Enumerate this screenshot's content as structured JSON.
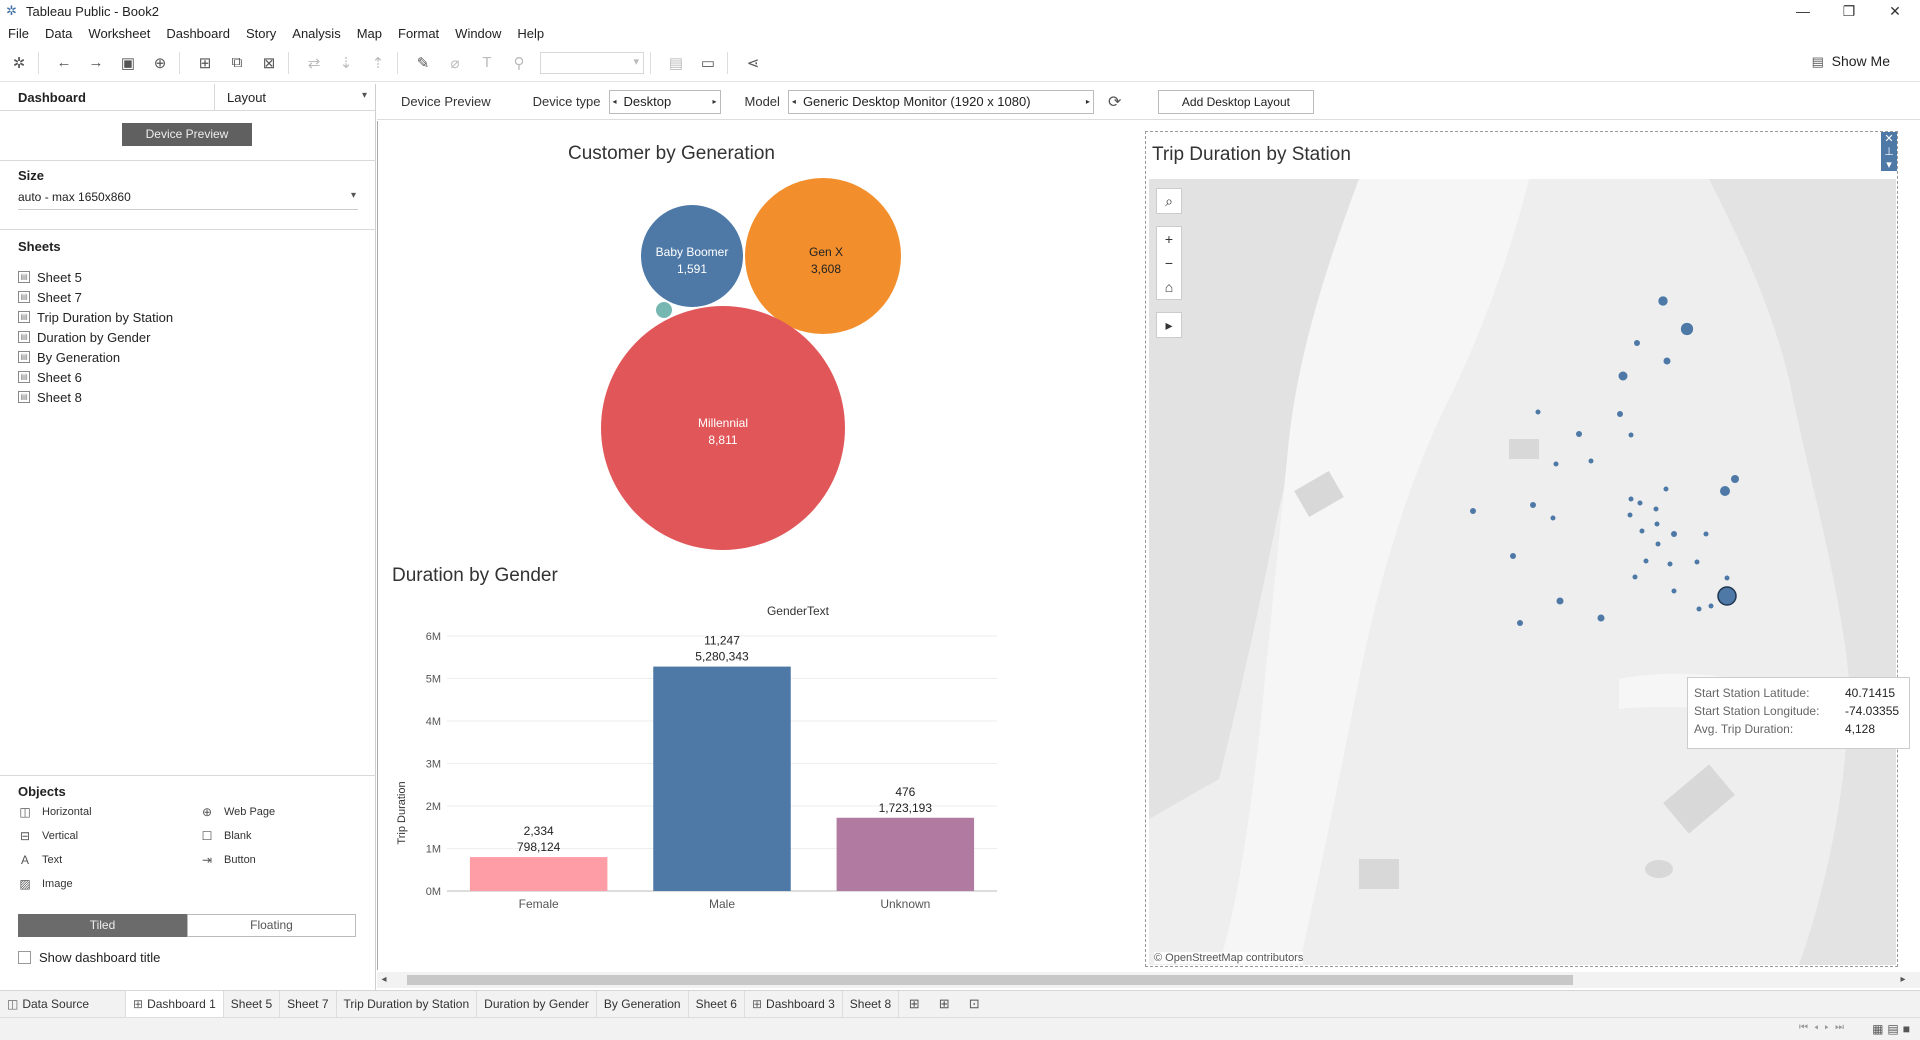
{
  "window": {
    "title": "Tableau Public - Book2",
    "minimize": "—",
    "maximize": "❐",
    "close": "✕"
  },
  "menu": [
    "File",
    "Data",
    "Worksheet",
    "Dashboard",
    "Story",
    "Analysis",
    "Map",
    "Format",
    "Window",
    "Help"
  ],
  "toolbar": {
    "show_me": "Show Me"
  },
  "left_panel": {
    "tab_dashboard": "Dashboard",
    "tab_layout": "Layout",
    "device_preview_button": "Device Preview",
    "size_heading": "Size",
    "size_value": "auto - max 1650x860",
    "sheets_heading": "Sheets",
    "sheets": [
      "Sheet 5",
      "Sheet 7",
      "Trip Duration by Station",
      "Duration by Gender",
      "By Generation",
      "Sheet 6",
      "Sheet 8"
    ],
    "objects_heading": "Objects",
    "objects": [
      {
        "label": "Horizontal",
        "icon": "horizontal-icon"
      },
      {
        "label": "Web Page",
        "icon": "web-page-icon"
      },
      {
        "label": "Vertical",
        "icon": "vertical-icon"
      },
      {
        "label": "Blank",
        "icon": "blank-icon"
      },
      {
        "label": "Text",
        "icon": "text-icon"
      },
      {
        "label": "Button",
        "icon": "button-icon"
      },
      {
        "label": "Image",
        "icon": "image-icon"
      }
    ],
    "tiled": "Tiled",
    "floating": "Floating",
    "show_dashboard_title": "Show dashboard title"
  },
  "device_bar": {
    "device_preview": "Device Preview",
    "device_type_label": "Device type",
    "device_type_value": "Desktop",
    "model_label": "Model",
    "model_value": "Generic Desktop Monitor (1920 x 1080)",
    "add_layout": "Add Desktop Layout"
  },
  "bubble_chart": {
    "title": "Customer by Generation",
    "bubbles": [
      {
        "label": "Baby Boomer",
        "value": "1,591",
        "color": "#4e79a7"
      },
      {
        "label": "Gen X",
        "value": "3,608",
        "color": "#f28e2b"
      },
      {
        "label": "Millennial",
        "value": "8,811",
        "color": "#e15759"
      },
      {
        "label": "",
        "value": "",
        "color": "#76b7b2"
      }
    ]
  },
  "chart_data": {
    "type": "bar",
    "title": "Duration by Gender",
    "column_header": "GenderText",
    "categories": [
      "Female",
      "Male",
      "Unknown"
    ],
    "values": [
      798124,
      5280343,
      1723193
    ],
    "counts": [
      "2,334",
      "11,247",
      "476"
    ],
    "value_labels": [
      "798,124",
      "5,280,343",
      "1,723,193"
    ],
    "colors": [
      "#ff9da7",
      "#4e79a7",
      "#b07aa1"
    ],
    "ylabel": "Trip Duration",
    "ylim": [
      0,
      6000000
    ],
    "yticks": [
      {
        "v": 0,
        "label": "0M"
      },
      {
        "v": 1000000,
        "label": "1M"
      },
      {
        "v": 2000000,
        "label": "2M"
      },
      {
        "v": 3000000,
        "label": "3M"
      },
      {
        "v": 4000000,
        "label": "4M"
      },
      {
        "v": 5000000,
        "label": "5M"
      },
      {
        "v": 6000000,
        "label": "6M"
      }
    ],
    "grid": true
  },
  "map": {
    "title": "Trip Duration by Station",
    "attribution": "© OpenStreetMap contributors",
    "tooltip": [
      {
        "k": "Start Station Latitude:",
        "v": "40.71415"
      },
      {
        "k": "Start Station Longitude:",
        "v": "-74.03355"
      },
      {
        "k": "Avg. Trip Duration:",
        "v": "4,128"
      }
    ]
  },
  "tabs": [
    {
      "label": "Data Source",
      "icon": "◫"
    },
    {
      "label": "Dashboard 1",
      "icon": "⊞",
      "active": true
    },
    {
      "label": "Sheet 5"
    },
    {
      "label": "Sheet 7"
    },
    {
      "label": "Trip Duration by Station"
    },
    {
      "label": "Duration by Gender"
    },
    {
      "label": "By Generation"
    },
    {
      "label": "Sheet 6"
    },
    {
      "label": "Dashboard 3",
      "icon": "⊞"
    },
    {
      "label": "Sheet 8"
    }
  ]
}
